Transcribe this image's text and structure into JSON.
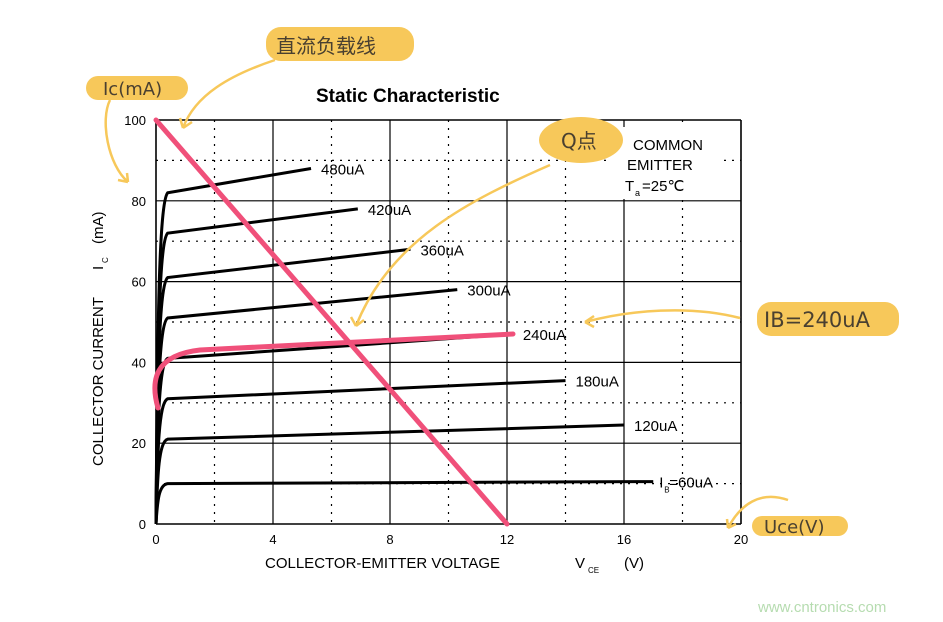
{
  "chart_data": {
    "type": "line",
    "title": "Static Characteristic",
    "xlabel": "COLLECTOR-EMITTER VOLTAGE",
    "xlabel_symbol": "V",
    "xlabel_symbol_sub": "CE",
    "xlabel_unit": "(V)",
    "ylabel": "COLLECTOR CURRENT",
    "ylabel_symbol": "I",
    "ylabel_symbol_sub": "C",
    "ylabel_unit": "(mA)",
    "xlim": [
      0,
      20
    ],
    "ylim": [
      0,
      100
    ],
    "xticks": [
      "0",
      "4",
      "8",
      "12",
      "16",
      "20"
    ],
    "yticks": [
      "0",
      "20",
      "40",
      "60",
      "80",
      "100"
    ],
    "grid": true,
    "legend_box": {
      "line1": "COMMON",
      "line2": "EMITTER",
      "line3_T": "T",
      "line3_sub": "a",
      "line3_rest": "=25℃"
    },
    "series": [
      {
        "name": "I_B=60uA",
        "label_prefix": "I",
        "label_sub": "B",
        "label": "=60uA",
        "knee": [
          0.4,
          10
        ],
        "end": [
          17,
          10.5
        ]
      },
      {
        "name": "120uA",
        "label": "120uA",
        "knee": [
          0.4,
          21
        ],
        "end": [
          16,
          24.5
        ]
      },
      {
        "name": "180uA",
        "label": "180uA",
        "knee": [
          0.4,
          31
        ],
        "end": [
          14,
          35.5
        ]
      },
      {
        "name": "240uA",
        "label": "240uA",
        "knee": [
          0.4,
          41
        ],
        "end": [
          12.2,
          47
        ]
      },
      {
        "name": "300uA",
        "label": "300uA",
        "knee": [
          0.4,
          51
        ],
        "end": [
          10.3,
          58
        ]
      },
      {
        "name": "360uA",
        "label": "360uA",
        "knee": [
          0.4,
          61
        ],
        "end": [
          8.7,
          68
        ]
      },
      {
        "name": "420uA",
        "label": "420uA",
        "knee": [
          0.4,
          72
        ],
        "end": [
          6.9,
          78
        ]
      },
      {
        "name": "480uA",
        "label": "480uA",
        "knee": [
          0.4,
          82
        ],
        "end": [
          5.3,
          88
        ]
      }
    ],
    "load_line": {
      "from": [
        0,
        100
      ],
      "to": [
        12,
        0
      ],
      "color": "#f0507a"
    },
    "highlighted_series": "240uA",
    "q_point": [
      6.8,
      44
    ]
  },
  "annotations": {
    "load_line_label": "直流负载线",
    "y_axis_label": "Ic(mA)",
    "q_point_label": "Q点",
    "ib_label": "IB=240uA",
    "x_axis_label": "Uce(V)",
    "highlight_color": "#f7c85a",
    "pink_color": "#f0507a"
  },
  "watermark": "www.cntronics.com"
}
